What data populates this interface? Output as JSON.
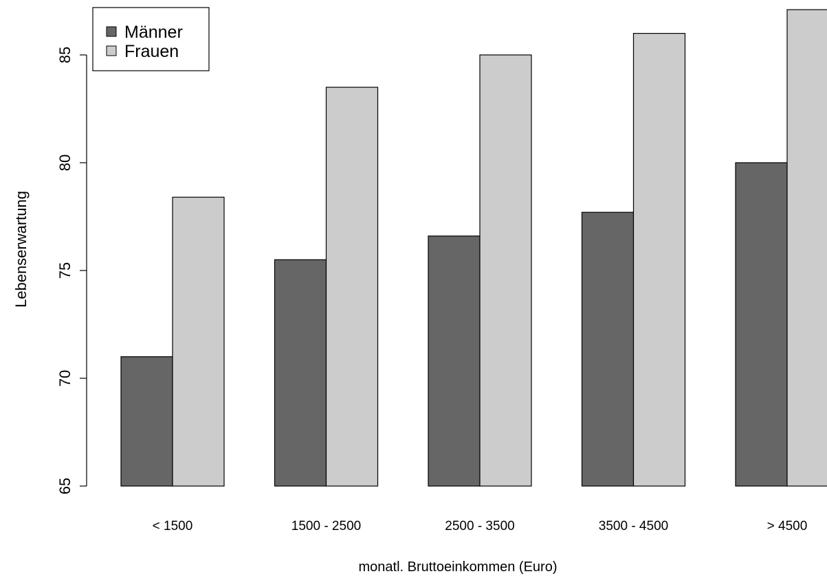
{
  "chart_data": {
    "type": "bar",
    "xlabel": "monatl. Bruttoeinkommen (Euro)",
    "ylabel": "Lebenserwartung",
    "ylim": [
      65,
      87.2
    ],
    "yticks": [
      65,
      70,
      75,
      80,
      85
    ],
    "categories": [
      "< 1500",
      "1500 - 2500",
      "2500 - 3500",
      "3500 - 4500",
      "> 4500"
    ],
    "series": [
      {
        "name": "Männer",
        "color": "#666666",
        "values": [
          71.0,
          75.5,
          76.6,
          77.7,
          80.0
        ]
      },
      {
        "name": "Frauen",
        "color": "#cccccc",
        "values": [
          78.4,
          83.5,
          85.0,
          86.0,
          87.1
        ]
      }
    ],
    "legend": {
      "position": "top-left"
    },
    "grid": false
  }
}
